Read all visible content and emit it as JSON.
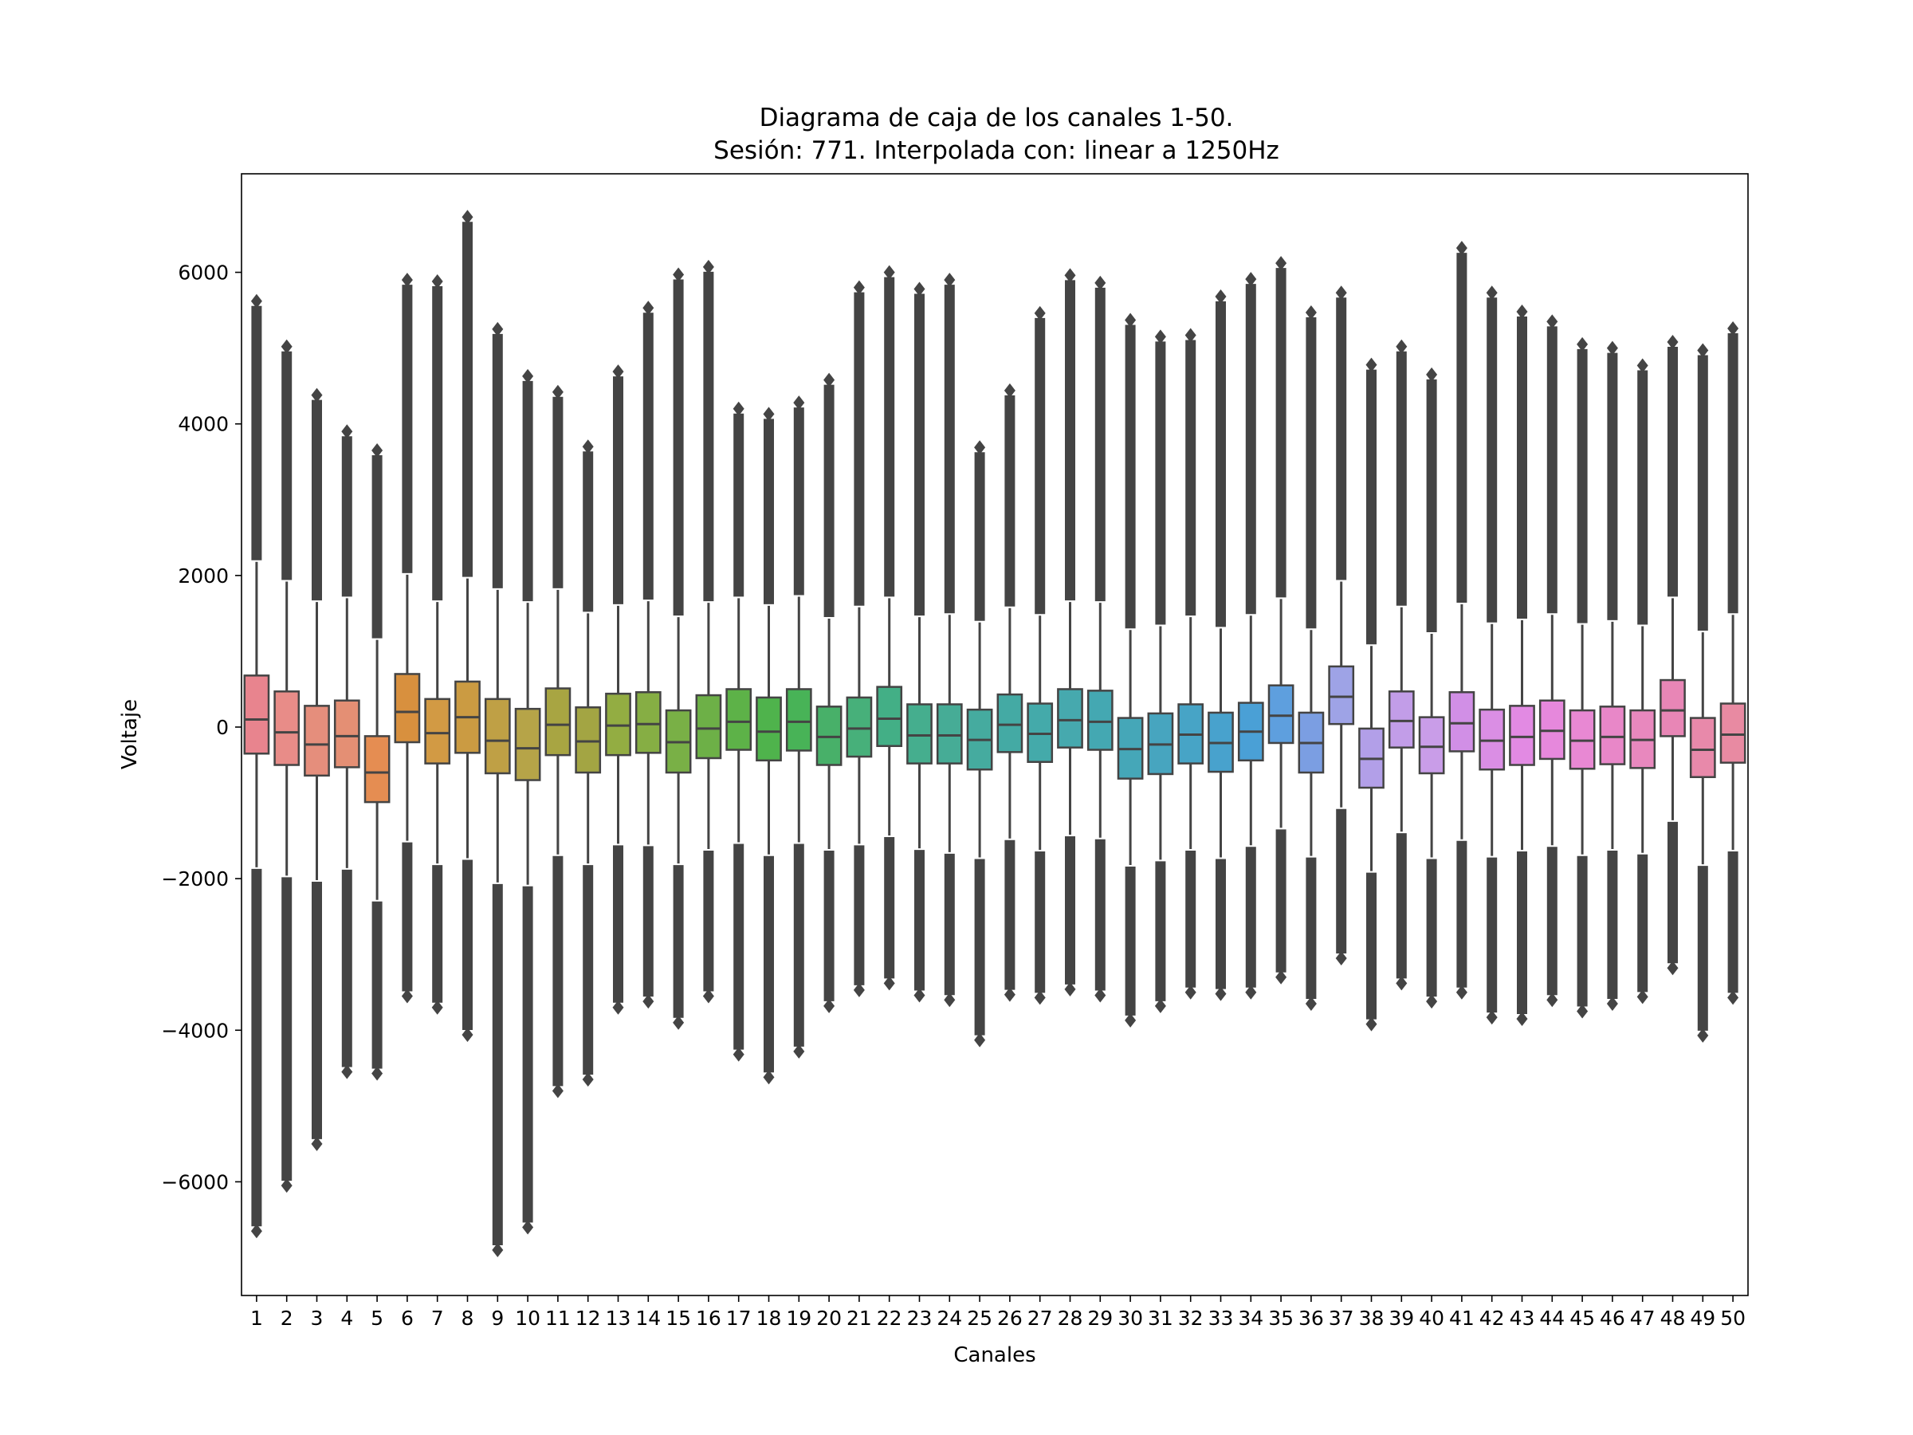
{
  "chart_data": {
    "type": "box",
    "title_line1": "Diagrama de caja de los canales 1-50.",
    "title_line2": "Sesión: 771. Interpolada con: linear a 1250Hz",
    "xlabel": "Canales",
    "ylabel": "Voltaje",
    "ylim": [
      -7500,
      7300
    ],
    "yticks": [
      -6000,
      -4000,
      -2000,
      0,
      2000,
      4000,
      6000
    ],
    "ytick_labels": [
      "−6000",
      "−4000",
      "−2000",
      "0",
      "2000",
      "4000",
      "6000"
    ],
    "grid": false,
    "categories": [
      "1",
      "2",
      "3",
      "4",
      "5",
      "6",
      "7",
      "8",
      "9",
      "10",
      "11",
      "12",
      "13",
      "14",
      "15",
      "16",
      "17",
      "18",
      "19",
      "20",
      "21",
      "22",
      "23",
      "24",
      "25",
      "26",
      "27",
      "28",
      "29",
      "30",
      "31",
      "32",
      "33",
      "34",
      "35",
      "36",
      "37",
      "38",
      "39",
      "40",
      "41",
      "42",
      "43",
      "44",
      "45",
      "46",
      "47",
      "48",
      "49",
      "50"
    ],
    "boxes": [
      {
        "q1": -350,
        "median": 100,
        "q3": 680,
        "whisker_low": -1850,
        "whisker_high": 2180,
        "min": -6650,
        "max": 5620,
        "color": "#e8848e"
      },
      {
        "q1": -500,
        "median": -70,
        "q3": 470,
        "whisker_low": -1960,
        "whisker_high": 1920,
        "min": -6050,
        "max": 5020,
        "color": "#e88c88"
      },
      {
        "q1": -640,
        "median": -230,
        "q3": 280,
        "whisker_low": -2020,
        "whisker_high": 1650,
        "min": -5500,
        "max": 4380,
        "color": "#e58e7c"
      },
      {
        "q1": -530,
        "median": -120,
        "q3": 350,
        "whisker_low": -1860,
        "whisker_high": 1700,
        "min": -4550,
        "max": 3900,
        "color": "#e48f74"
      },
      {
        "q1": -990,
        "median": -600,
        "q3": -120,
        "whisker_low": -2280,
        "whisker_high": 1150,
        "min": -4570,
        "max": 3650,
        "color": "#e58d52"
      },
      {
        "q1": -200,
        "median": 200,
        "q3": 700,
        "whisker_low": -1500,
        "whisker_high": 2010,
        "min": -3550,
        "max": 5900,
        "color": "#d8903e"
      },
      {
        "q1": -480,
        "median": -80,
        "q3": 370,
        "whisker_low": -1800,
        "whisker_high": 1650,
        "min": -3700,
        "max": 5880,
        "color": "#d29a44"
      },
      {
        "q1": -340,
        "median": 130,
        "q3": 600,
        "whisker_low": -1730,
        "whisker_high": 1960,
        "min": -4060,
        "max": 6730,
        "color": "#cb9b42"
      },
      {
        "q1": -610,
        "median": -180,
        "q3": 370,
        "whisker_low": -2050,
        "whisker_high": 1810,
        "min": -6900,
        "max": 5250,
        "color": "#bfa045"
      },
      {
        "q1": -700,
        "median": -280,
        "q3": 240,
        "whisker_low": -2080,
        "whisker_high": 1640,
        "min": -6600,
        "max": 4630,
        "color": "#b6a448"
      },
      {
        "q1": -370,
        "median": 30,
        "q3": 510,
        "whisker_low": -1680,
        "whisker_high": 1810,
        "min": -4800,
        "max": 4420,
        "color": "#a8a542"
      },
      {
        "q1": -600,
        "median": -190,
        "q3": 260,
        "whisker_low": -1800,
        "whisker_high": 1500,
        "min": -4650,
        "max": 3700,
        "color": "#a3a543"
      },
      {
        "q1": -370,
        "median": 20,
        "q3": 440,
        "whisker_low": -1540,
        "whisker_high": 1600,
        "min": -3700,
        "max": 4690,
        "color": "#93ad42"
      },
      {
        "q1": -340,
        "median": 40,
        "q3": 460,
        "whisker_low": -1550,
        "whisker_high": 1660,
        "min": -3620,
        "max": 5530,
        "color": "#86ae44"
      },
      {
        "q1": -600,
        "median": -200,
        "q3": 220,
        "whisker_low": -1800,
        "whisker_high": 1450,
        "min": -3900,
        "max": 5970,
        "color": "#79b046"
      },
      {
        "q1": -410,
        "median": -20,
        "q3": 420,
        "whisker_low": -1610,
        "whisker_high": 1640,
        "min": -3550,
        "max": 6070,
        "color": "#6db047"
      },
      {
        "q1": -300,
        "median": 70,
        "q3": 500,
        "whisker_low": -1520,
        "whisker_high": 1700,
        "min": -4320,
        "max": 4200,
        "color": "#5db248"
      },
      {
        "q1": -440,
        "median": -60,
        "q3": 390,
        "whisker_low": -1680,
        "whisker_high": 1600,
        "min": -4620,
        "max": 4130,
        "color": "#4fb34c"
      },
      {
        "q1": -310,
        "median": 70,
        "q3": 500,
        "whisker_low": -1520,
        "whisker_high": 1720,
        "min": -4280,
        "max": 4280,
        "color": "#48b357"
      },
      {
        "q1": -500,
        "median": -130,
        "q3": 270,
        "whisker_low": -1610,
        "whisker_high": 1430,
        "min": -3680,
        "max": 4580,
        "color": "#48b069"
      },
      {
        "q1": -390,
        "median": -20,
        "q3": 390,
        "whisker_low": -1540,
        "whisker_high": 1580,
        "min": -3470,
        "max": 5800,
        "color": "#47b07a"
      },
      {
        "q1": -250,
        "median": 110,
        "q3": 530,
        "whisker_low": -1430,
        "whisker_high": 1700,
        "min": -3380,
        "max": 6000,
        "color": "#43af86"
      },
      {
        "q1": -480,
        "median": -110,
        "q3": 300,
        "whisker_low": -1600,
        "whisker_high": 1450,
        "min": -3540,
        "max": 5780,
        "color": "#45ae8e"
      },
      {
        "q1": -480,
        "median": -110,
        "q3": 300,
        "whisker_low": -1650,
        "whisker_high": 1480,
        "min": -3600,
        "max": 5900,
        "color": "#46ac96"
      },
      {
        "q1": -560,
        "median": -170,
        "q3": 230,
        "whisker_low": -1720,
        "whisker_high": 1380,
        "min": -4130,
        "max": 3690,
        "color": "#45ab9f"
      },
      {
        "q1": -330,
        "median": 30,
        "q3": 430,
        "whisker_low": -1470,
        "whisker_high": 1570,
        "min": -3530,
        "max": 4440,
        "color": "#44aaa4"
      },
      {
        "q1": -460,
        "median": -90,
        "q3": 310,
        "whisker_low": -1620,
        "whisker_high": 1470,
        "min": -3570,
        "max": 5460,
        "color": "#44aaaa"
      },
      {
        "q1": -270,
        "median": 90,
        "q3": 500,
        "whisker_low": -1420,
        "whisker_high": 1650,
        "min": -3460,
        "max": 5960,
        "color": "#46a9ae"
      },
      {
        "q1": -300,
        "median": 70,
        "q3": 480,
        "whisker_low": -1460,
        "whisker_high": 1640,
        "min": -3540,
        "max": 5860,
        "color": "#44a8b2"
      },
      {
        "q1": -680,
        "median": -290,
        "q3": 120,
        "whisker_low": -1820,
        "whisker_high": 1280,
        "min": -3870,
        "max": 5370,
        "color": "#45a7b8"
      },
      {
        "q1": -620,
        "median": -230,
        "q3": 180,
        "whisker_low": -1750,
        "whisker_high": 1330,
        "min": -3680,
        "max": 5150,
        "color": "#47a5bf"
      },
      {
        "q1": -480,
        "median": -100,
        "q3": 300,
        "whisker_low": -1610,
        "whisker_high": 1450,
        "min": -3500,
        "max": 5170,
        "color": "#47a4c6"
      },
      {
        "q1": -590,
        "median": -210,
        "q3": 190,
        "whisker_low": -1720,
        "whisker_high": 1300,
        "min": -3520,
        "max": 5680,
        "color": "#48a2cd"
      },
      {
        "q1": -440,
        "median": -60,
        "q3": 320,
        "whisker_low": -1560,
        "whisker_high": 1470,
        "min": -3500,
        "max": 5910,
        "color": "#4aa0d6"
      },
      {
        "q1": -210,
        "median": 150,
        "q3": 550,
        "whisker_low": -1330,
        "whisker_high": 1690,
        "min": -3300,
        "max": 6120,
        "color": "#5e9fde"
      },
      {
        "q1": -600,
        "median": -210,
        "q3": 190,
        "whisker_low": -1700,
        "whisker_high": 1280,
        "min": -3650,
        "max": 5470,
        "color": "#7b9ee2"
      },
      {
        "q1": 40,
        "median": 400,
        "q3": 800,
        "whisker_low": -1060,
        "whisker_high": 1920,
        "min": -3050,
        "max": 5730,
        "color": "#9ea3e6"
      },
      {
        "q1": -800,
        "median": -420,
        "q3": -20,
        "whisker_low": -1900,
        "whisker_high": 1070,
        "min": -3920,
        "max": 4780,
        "color": "#b29fe8"
      },
      {
        "q1": -270,
        "median": 80,
        "q3": 470,
        "whisker_low": -1380,
        "whisker_high": 1580,
        "min": -3380,
        "max": 5020,
        "color": "#c29de8"
      },
      {
        "q1": -610,
        "median": -260,
        "q3": 130,
        "whisker_low": -1720,
        "whisker_high": 1230,
        "min": -3620,
        "max": 4650,
        "color": "#c99de8"
      },
      {
        "q1": -320,
        "median": 50,
        "q3": 460,
        "whisker_low": -1480,
        "whisker_high": 1620,
        "min": -3500,
        "max": 6320,
        "color": "#d18fe6"
      },
      {
        "q1": -560,
        "median": -180,
        "q3": 230,
        "whisker_low": -1700,
        "whisker_high": 1360,
        "min": -3830,
        "max": 5730,
        "color": "#da8ee4"
      },
      {
        "q1": -500,
        "median": -130,
        "q3": 280,
        "whisker_low": -1620,
        "whisker_high": 1410,
        "min": -3850,
        "max": 5480,
        "color": "#e28ae3"
      },
      {
        "q1": -420,
        "median": -50,
        "q3": 350,
        "whisker_low": -1560,
        "whisker_high": 1480,
        "min": -3600,
        "max": 5350,
        "color": "#e688dc"
      },
      {
        "q1": -550,
        "median": -180,
        "q3": 220,
        "whisker_low": -1680,
        "whisker_high": 1350,
        "min": -3750,
        "max": 5050,
        "color": "#e888d3"
      },
      {
        "q1": -490,
        "median": -130,
        "q3": 270,
        "whisker_low": -1610,
        "whisker_high": 1390,
        "min": -3650,
        "max": 5000,
        "color": "#e887c8"
      },
      {
        "q1": -540,
        "median": -170,
        "q3": 220,
        "whisker_low": -1660,
        "whisker_high": 1330,
        "min": -3560,
        "max": 4770,
        "color": "#e888be"
      },
      {
        "q1": -120,
        "median": 220,
        "q3": 620,
        "whisker_low": -1230,
        "whisker_high": 1700,
        "min": -3180,
        "max": 5080,
        "color": "#e886b6"
      },
      {
        "q1": -660,
        "median": -300,
        "q3": 120,
        "whisker_low": -1810,
        "whisker_high": 1250,
        "min": -4070,
        "max": 4970,
        "color": "#e889aa"
      },
      {
        "q1": -470,
        "median": -100,
        "q3": 310,
        "whisker_low": -1620,
        "whisker_high": 1480,
        "min": -3570,
        "max": 5260,
        "color": "#e88aa2"
      }
    ]
  }
}
